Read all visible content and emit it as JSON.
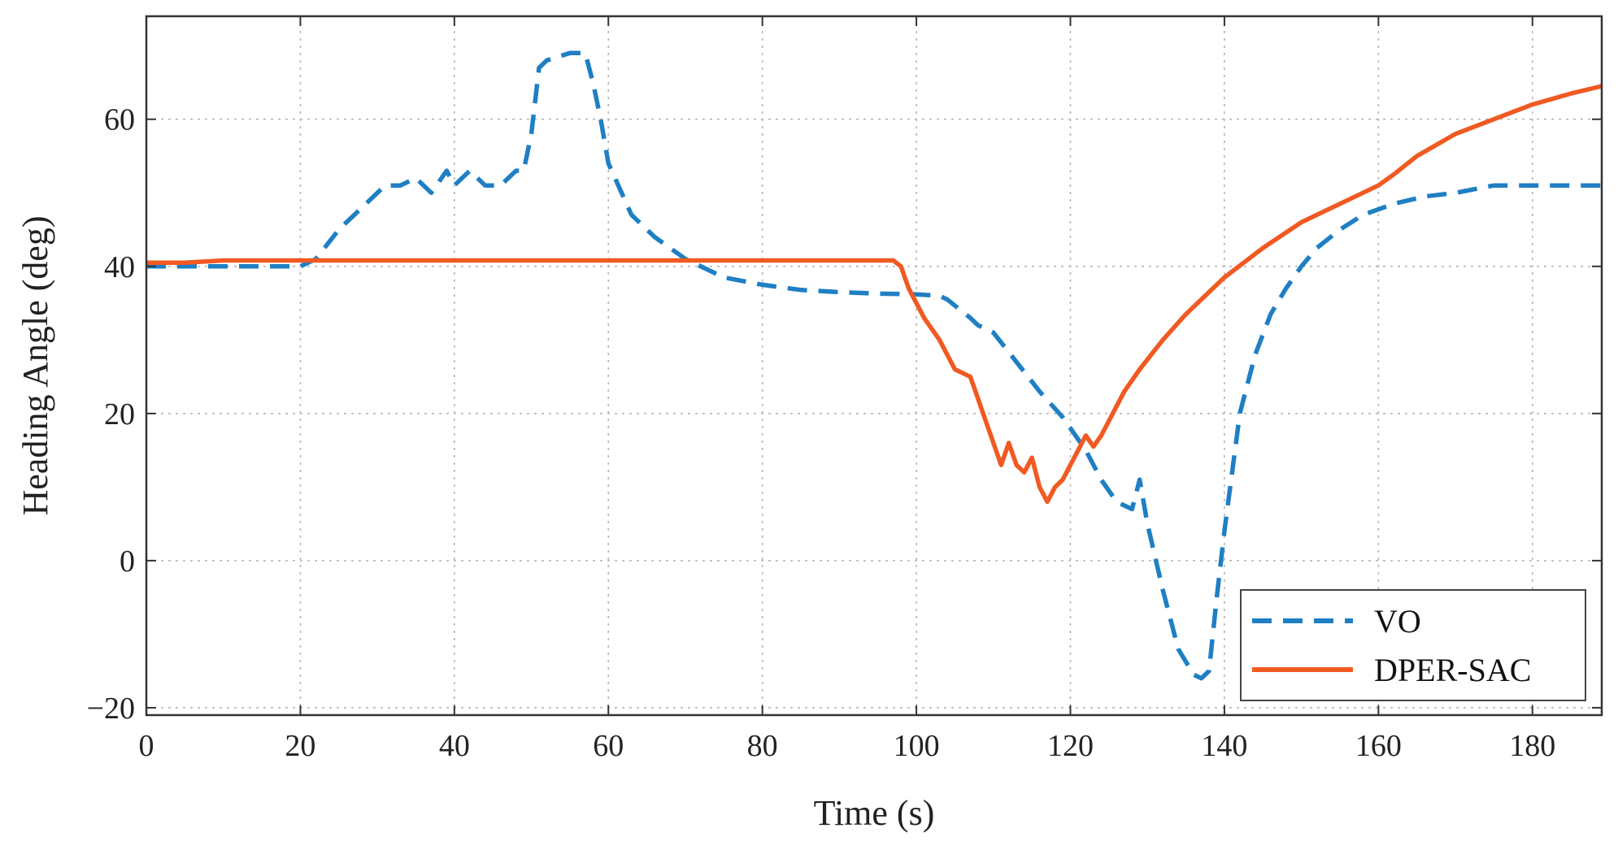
{
  "chart_data": {
    "type": "line",
    "title": "",
    "xlabel": "Time (s)",
    "ylabel": "Heading Angle (deg)",
    "xlim": [
      0,
      189
    ],
    "ylim": [
      -21,
      74
    ],
    "xticks": [
      0,
      20,
      40,
      60,
      80,
      100,
      120,
      140,
      160,
      180
    ],
    "yticks": [
      -20,
      0,
      20,
      40,
      60
    ],
    "ytick_labels": [
      "−20",
      "0",
      "20",
      "40",
      "60"
    ],
    "grid": true,
    "legend_position": "bottom-right",
    "series": [
      {
        "name": "VO",
        "color": "#1f7fc4",
        "style": "dashed",
        "x": [
          0,
          5,
          10,
          15,
          20,
          22,
          25,
          28,
          31,
          33,
          35,
          37,
          39,
          40,
          42,
          44,
          46,
          48,
          49,
          50,
          51,
          52,
          55,
          57,
          58,
          59,
          60,
          63,
          66,
          70,
          75,
          80,
          85,
          90,
          95,
          100,
          103,
          104,
          107,
          108,
          110,
          113,
          116,
          119,
          122,
          124,
          126,
          128,
          129,
          130,
          132,
          134,
          136,
          137,
          138,
          139,
          140,
          141,
          142,
          143,
          144,
          146,
          148,
          150,
          152,
          155,
          158,
          162,
          166,
          170,
          175,
          180,
          185,
          189
        ],
        "y": [
          40,
          40,
          40,
          40,
          40,
          41,
          45,
          48,
          51,
          51,
          52,
          50,
          53,
          51,
          53,
          51,
          51,
          53,
          53,
          58,
          67,
          68,
          69,
          69,
          65,
          60,
          54,
          47,
          44,
          41,
          38.5,
          37.5,
          36.8,
          36.5,
          36.3,
          36.2,
          36,
          35.5,
          33,
          32,
          31,
          27,
          23,
          19.5,
          15,
          11,
          8,
          7,
          11,
          5,
          -4,
          -12,
          -15.5,
          -16,
          -15,
          -5,
          4,
          12,
          20,
          24,
          28,
          33.5,
          37,
          40,
          42.5,
          45,
          47,
          48.5,
          49.5,
          50,
          51,
          51,
          51,
          51
        ]
      },
      {
        "name": "DPER-SAC",
        "color": "#f05a22",
        "style": "solid",
        "x": [
          0,
          5,
          10,
          15,
          20,
          40,
          60,
          80,
          90,
          97,
          98,
          99,
          101,
          103,
          105,
          107,
          108,
          109,
          110,
          111,
          112,
          113,
          114,
          115,
          116,
          117,
          118,
          119,
          120,
          121,
          122,
          123,
          124,
          125,
          127,
          129,
          132,
          135,
          140,
          145,
          150,
          155,
          160,
          162,
          165,
          170,
          175,
          180,
          185,
          189
        ],
        "y": [
          40.5,
          40.5,
          40.8,
          40.8,
          40.8,
          40.8,
          40.8,
          40.8,
          40.8,
          40.8,
          40,
          37,
          33,
          30,
          26,
          25,
          22,
          19,
          16,
          13,
          16,
          13,
          12,
          14,
          10,
          8,
          10,
          11,
          13,
          15,
          17,
          15.5,
          17,
          19,
          23,
          26,
          30,
          33.5,
          38.5,
          42.5,
          46,
          48.5,
          51,
          52.5,
          55,
          58,
          60,
          62,
          63.5,
          64.5
        ]
      }
    ]
  }
}
